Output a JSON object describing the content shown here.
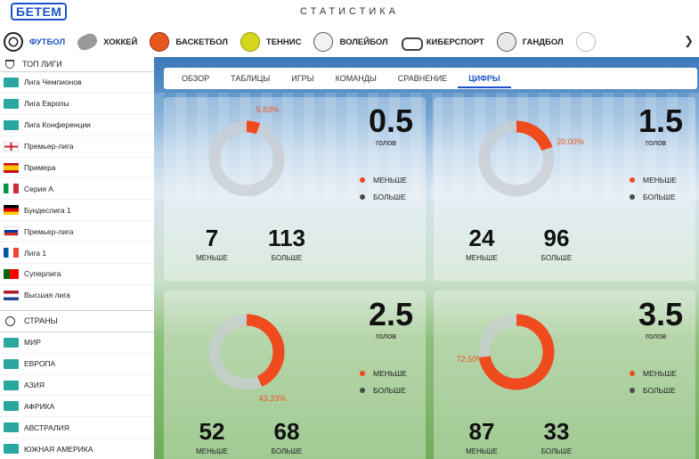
{
  "header": {
    "logo": "БЕТЕМ",
    "title": "СТАТИСТИКА"
  },
  "sports_nav": [
    {
      "label": "ФУТБОЛ",
      "icon": "football-icon",
      "active": true
    },
    {
      "label": "ХОККЕЙ",
      "icon": "hockey-icon"
    },
    {
      "label": "БАСКЕТБОЛ",
      "icon": "basketball-icon"
    },
    {
      "label": "ТЕННИС",
      "icon": "tennis-icon"
    },
    {
      "label": "ВОЛЕЙБОЛ",
      "icon": "volleyball-icon"
    },
    {
      "label": "КИБЕРСПОРТ",
      "icon": "gamepad-icon"
    },
    {
      "label": "ГАНДБОЛ",
      "icon": "handball-icon"
    },
    {
      "label": "",
      "icon": "baseball-icon"
    }
  ],
  "nav_arrow": "❯",
  "sidebar": {
    "top_leagues_label": "ТОП ЛИГИ",
    "leagues": [
      {
        "label": "Лига Чемпионов",
        "flag": "cup"
      },
      {
        "label": "Лига Европы",
        "flag": "cup"
      },
      {
        "label": "Лига Конференции",
        "flag": "cup"
      },
      {
        "label": "Премьер-лига",
        "flag": "england"
      },
      {
        "label": "Примера",
        "flag": "spain"
      },
      {
        "label": "Серия А",
        "flag": "italy"
      },
      {
        "label": "Бундеслига 1",
        "flag": "germany"
      },
      {
        "label": "Премьер-лига",
        "flag": "russia"
      },
      {
        "label": "Лига 1",
        "flag": "france"
      },
      {
        "label": "Суперлига",
        "flag": "portugal"
      },
      {
        "label": "Высшая лига",
        "flag": "netherlands"
      }
    ],
    "countries_label": "СТРАНЫ",
    "regions": [
      {
        "label": "МИР",
        "icon": "world-icon"
      },
      {
        "label": "ЕВРОПА",
        "icon": "europe-icon"
      },
      {
        "label": "АЗИЯ",
        "icon": "asia-icon"
      },
      {
        "label": "АФРИКА",
        "icon": "africa-icon"
      },
      {
        "label": "АВСТРАЛИЯ",
        "icon": "australia-icon"
      },
      {
        "label": "ЮЖНАЯ АМЕРИКА",
        "icon": "south-america-icon"
      }
    ]
  },
  "tabs": [
    {
      "label": "ОБЗОР"
    },
    {
      "label": "ТАБЛИЦЫ"
    },
    {
      "label": "ИГРЫ"
    },
    {
      "label": "КОМАНДЫ"
    },
    {
      "label": "СРАВНЕНИЕ"
    },
    {
      "label": "ЦИФРЫ",
      "active": true
    }
  ],
  "colors": {
    "accent": "#1e53c8",
    "under": "#f04a1f",
    "over": "#4b4b4b",
    "ring_bg": "#c8cdd2"
  },
  "cards": [
    {
      "total": "0.5",
      "unit": "голов",
      "under_pct_label": "5.83%",
      "under_fraction": 0.0583,
      "legend_under": "МЕНЬШЕ",
      "legend_over": "БОЛЬШЕ",
      "under_count": "7",
      "under_label": "МЕНЬШЕ",
      "over_count": "113",
      "over_label": "БОЛЬШЕ"
    },
    {
      "total": "1.5",
      "unit": "голов",
      "under_pct_label": "20.00%",
      "under_fraction": 0.2,
      "legend_under": "МЕНЬШЕ",
      "legend_over": "БОЛЬШЕ",
      "under_count": "24",
      "under_label": "МЕНЬШЕ",
      "over_count": "96",
      "over_label": "БОЛЬШЕ"
    },
    {
      "total": "2.5",
      "unit": "голов",
      "under_pct_label": "43.33%",
      "under_fraction": 0.4333,
      "legend_under": "МЕНЬШЕ",
      "legend_over": "БОЛЬШЕ",
      "under_count": "52",
      "under_label": "МЕНЬШЕ",
      "over_count": "68",
      "over_label": "БОЛЬШЕ"
    },
    {
      "total": "3.5",
      "unit": "голов",
      "under_pct_label": "72.50%",
      "under_fraction": 0.725,
      "legend_under": "МЕНЬШЕ",
      "legend_over": "БОЛЬШЕ",
      "under_count": "87",
      "under_label": "МЕНЬШЕ",
      "over_count": "33",
      "over_label": "БОЛЬШЕ"
    }
  ]
}
